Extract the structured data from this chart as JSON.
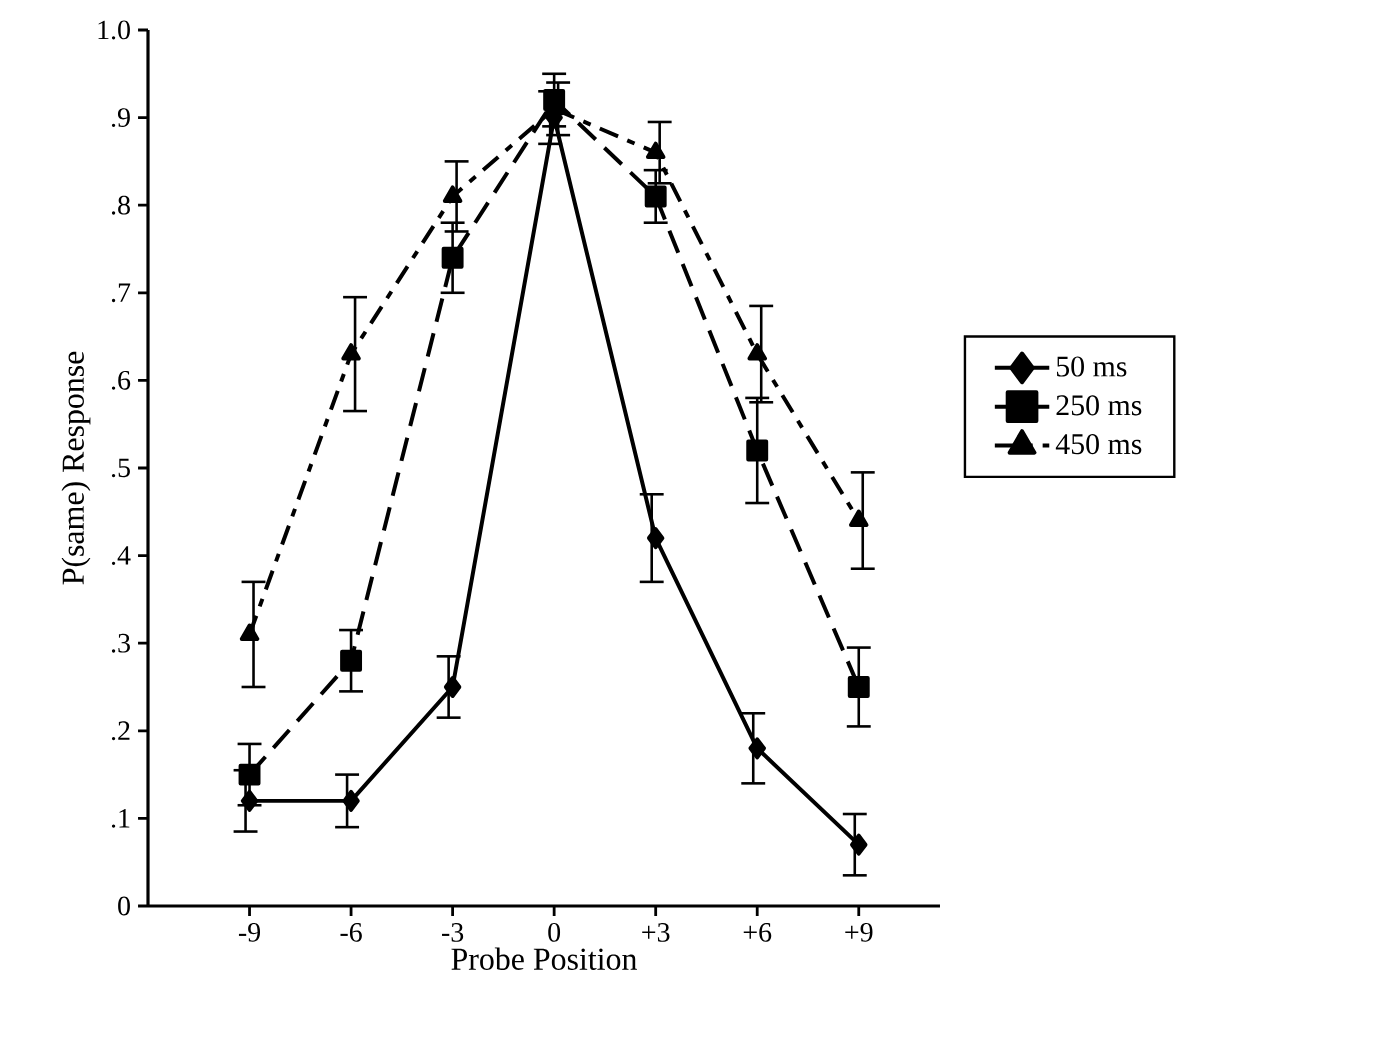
{
  "chart_data": {
    "type": "line",
    "xlabel": "Probe Position",
    "ylabel": "P(same) Response",
    "categories": [
      "-9",
      "-6",
      "-3",
      "0",
      "+3",
      "+6",
      "+9"
    ],
    "series": [
      {
        "name": "50 ms",
        "color": "#000000",
        "marker": "diamond",
        "line_style": "solid",
        "values": [
          0.12,
          0.12,
          0.25,
          0.9,
          0.42,
          0.18,
          0.07
        ],
        "errors": [
          0.035,
          0.03,
          0.035,
          0.03,
          0.05,
          0.04,
          0.035
        ]
      },
      {
        "name": "250 ms",
        "color": "#000000",
        "marker": "square",
        "line_style": "dashed",
        "values": [
          0.15,
          0.28,
          0.74,
          0.92,
          0.81,
          0.52,
          0.25
        ],
        "errors": [
          0.035,
          0.035,
          0.04,
          0.03,
          0.03,
          0.06,
          0.045
        ]
      },
      {
        "name": "450 ms",
        "color": "#000000",
        "marker": "triangle",
        "line_style": "dashed",
        "values": [
          0.31,
          0.63,
          0.81,
          0.91,
          0.86,
          0.63,
          0.44
        ],
        "errors": [
          0.06,
          0.065,
          0.04,
          0.03,
          0.035,
          0.055,
          0.055
        ]
      }
    ],
    "ylim": [
      0,
      1.0
    ],
    "yticks": [
      0,
      {
        "value": 0.1,
        "label": ".1"
      },
      {
        "value": 0.2,
        "label": ".2"
      },
      {
        "value": 0.3,
        "label": ".3"
      },
      {
        "value": 0.4,
        "label": ".4"
      },
      {
        "value": 0.5,
        "label": ".5"
      },
      {
        "value": 0.6,
        "label": ".6"
      },
      {
        "value": 0.7,
        "label": ".7"
      },
      {
        "value": 0.8,
        "label": ".8"
      },
      {
        "value": 0.9,
        "label": ".9"
      },
      {
        "value": 1.0,
        "label": "1.0"
      }
    ],
    "grid": false,
    "legend": "right"
  }
}
